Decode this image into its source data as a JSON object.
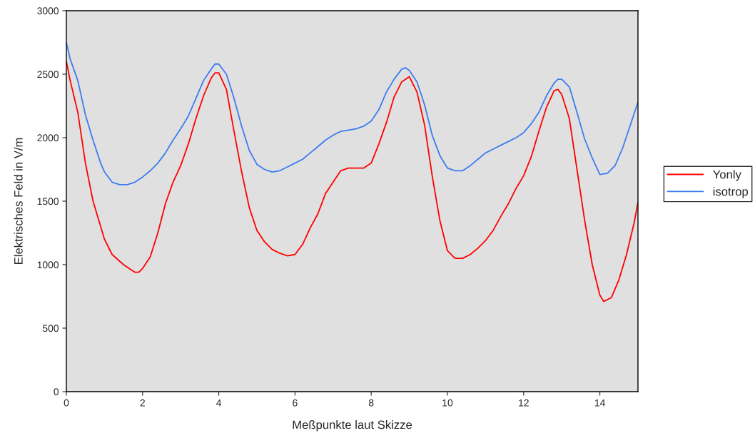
{
  "chart_data": {
    "type": "line",
    "xlabel": "Meßpunkte laut Skizze",
    "ylabel": "Elektrisches Feld in V/m",
    "xlim": [
      0,
      15
    ],
    "xticks": [
      0,
      2,
      4,
      6,
      8,
      10,
      12,
      14
    ],
    "ylim": [
      0,
      3000
    ],
    "yticks": [
      0,
      500,
      1000,
      1500,
      2000,
      2500,
      3000
    ],
    "grid": false,
    "legend": "right",
    "marker": "none",
    "line_style": "solid",
    "series": [
      {
        "name": "Yonly",
        "color": "#ff0000",
        "x": [
          0,
          0.1,
          0.3,
          0.5,
          0.7,
          0.9,
          1.0,
          1.2,
          1.5,
          1.8,
          1.9,
          2.0,
          2.2,
          2.4,
          2.6,
          2.8,
          3.0,
          3.2,
          3.4,
          3.6,
          3.8,
          3.9,
          4.0,
          4.2,
          4.4,
          4.6,
          4.8,
          5.0,
          5.2,
          5.4,
          5.6,
          5.8,
          6.0,
          6.2,
          6.4,
          6.6,
          6.8,
          7.0,
          7.2,
          7.4,
          7.6,
          7.8,
          8.0,
          8.2,
          8.4,
          8.6,
          8.8,
          9.0,
          9.2,
          9.4,
          9.6,
          9.8,
          10.0,
          10.2,
          10.4,
          10.6,
          10.8,
          11.0,
          11.2,
          11.4,
          11.6,
          11.8,
          12.0,
          12.2,
          12.4,
          12.6,
          12.8,
          12.9,
          13.0,
          13.2,
          13.4,
          13.6,
          13.8,
          14.0,
          14.1,
          14.3,
          14.5,
          14.7,
          14.9,
          15.0
        ],
        "values": [
          2600,
          2450,
          2200,
          1800,
          1500,
          1300,
          1200,
          1080,
          1000,
          940,
          940,
          970,
          1060,
          1250,
          1480,
          1650,
          1780,
          1950,
          2150,
          2330,
          2470,
          2510,
          2510,
          2380,
          2050,
          1730,
          1450,
          1270,
          1180,
          1120,
          1090,
          1070,
          1080,
          1160,
          1290,
          1400,
          1560,
          1650,
          1740,
          1760,
          1760,
          1760,
          1800,
          1950,
          2120,
          2320,
          2440,
          2480,
          2360,
          2100,
          1700,
          1350,
          1110,
          1050,
          1050,
          1080,
          1130,
          1190,
          1270,
          1380,
          1480,
          1600,
          1700,
          1850,
          2050,
          2240,
          2370,
          2380,
          2340,
          2150,
          1750,
          1350,
          1000,
          760,
          710,
          740,
          880,
          1080,
          1330,
          1490
        ]
      },
      {
        "name": "isotrop",
        "color": "#3d7cf0",
        "x": [
          0,
          0.1,
          0.3,
          0.5,
          0.7,
          0.9,
          1.0,
          1.2,
          1.4,
          1.6,
          1.8,
          2.0,
          2.2,
          2.4,
          2.6,
          2.8,
          3.0,
          3.2,
          3.4,
          3.6,
          3.8,
          3.9,
          4.0,
          4.2,
          4.4,
          4.6,
          4.8,
          5.0,
          5.2,
          5.4,
          5.6,
          5.8,
          6.0,
          6.2,
          6.4,
          6.6,
          6.8,
          7.0,
          7.2,
          7.4,
          7.6,
          7.8,
          8.0,
          8.2,
          8.4,
          8.6,
          8.8,
          8.9,
          9.0,
          9.2,
          9.4,
          9.6,
          9.8,
          10.0,
          10.2,
          10.4,
          10.6,
          10.8,
          11.0,
          11.2,
          11.4,
          11.6,
          11.8,
          12.0,
          12.2,
          12.4,
          12.6,
          12.8,
          12.9,
          13.0,
          13.2,
          13.4,
          13.6,
          13.8,
          14.0,
          14.2,
          14.4,
          14.6,
          14.8,
          15.0
        ],
        "values": [
          2750,
          2620,
          2450,
          2180,
          1980,
          1800,
          1730,
          1650,
          1630,
          1630,
          1650,
          1690,
          1740,
          1800,
          1880,
          1980,
          2070,
          2170,
          2310,
          2450,
          2540,
          2580,
          2580,
          2500,
          2310,
          2090,
          1900,
          1790,
          1750,
          1730,
          1740,
          1770,
          1800,
          1830,
          1880,
          1930,
          1980,
          2020,
          2050,
          2060,
          2070,
          2090,
          2130,
          2220,
          2360,
          2460,
          2540,
          2550,
          2530,
          2440,
          2260,
          2020,
          1860,
          1760,
          1740,
          1740,
          1780,
          1830,
          1880,
          1910,
          1940,
          1970,
          2000,
          2040,
          2110,
          2200,
          2330,
          2430,
          2460,
          2460,
          2400,
          2200,
          1990,
          1840,
          1710,
          1720,
          1780,
          1920,
          2100,
          2280
        ]
      }
    ]
  }
}
